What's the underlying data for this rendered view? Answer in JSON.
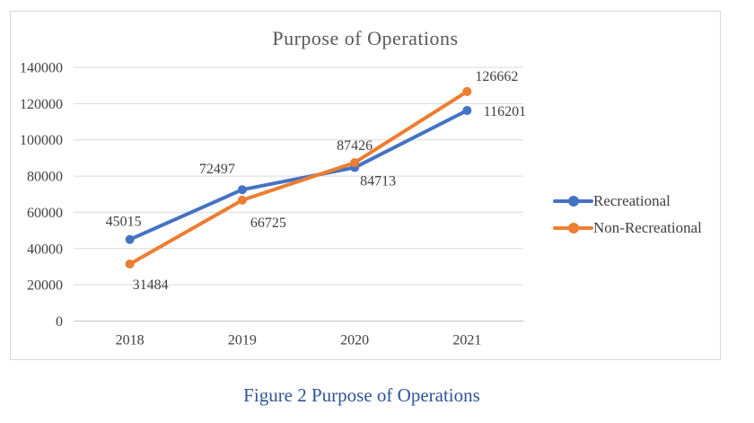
{
  "chart_data": {
    "type": "line",
    "title": "Purpose of Operations",
    "categories": [
      "2018",
      "2019",
      "2020",
      "2021"
    ],
    "series": [
      {
        "name": "Recreational",
        "color": "#4472C4",
        "values": [
          45015,
          72497,
          84713,
          116201
        ],
        "label_offsets": [
          {
            "dx": -7,
            "dy": -15
          },
          {
            "dx": -28,
            "dy": -18
          },
          {
            "dx": 26,
            "dy": 20
          },
          {
            "dx": 42,
            "dy": 6
          }
        ]
      },
      {
        "name": "Non-Recreational",
        "color": "#ED7D31",
        "values": [
          31484,
          66725,
          87426,
          126662
        ],
        "label_offsets": [
          {
            "dx": 23,
            "dy": 28
          },
          {
            "dx": 29,
            "dy": 30
          },
          {
            "dx": 0,
            "dy": -14
          },
          {
            "dx": 33,
            "dy": -12
          }
        ]
      }
    ],
    "y_axis": {
      "min": 0,
      "max": 140000,
      "step": 20000,
      "tick_labels": [
        "0",
        "20000",
        "40000",
        "60000",
        "80000",
        "100000",
        "120000",
        "140000"
      ]
    },
    "legend_position": "right",
    "grid": true,
    "colors": {
      "title": "#595959",
      "tick": "#404040",
      "data_label": "#404040",
      "gridline": "#d9d9d9",
      "axis_line": "#c3c3c3",
      "frame_border": "#d9d9d9"
    }
  },
  "caption": {
    "text": "Figure 2 Purpose of Operations",
    "color": "#2e5496"
  }
}
